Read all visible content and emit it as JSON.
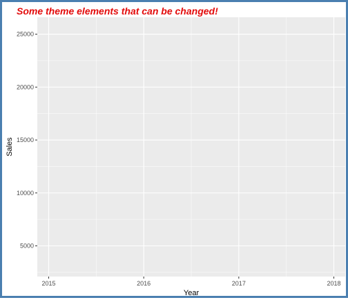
{
  "chart_data": {
    "type": "scatter",
    "title": "Some theme elements that can be changed!",
    "xlabel": "Year",
    "ylabel": "Sales",
    "x_ticks": [
      2015,
      2016,
      2017,
      2018
    ],
    "y_ticks": [
      5000,
      10000,
      15000,
      20000,
      25000
    ],
    "xlim": [
      2014.88,
      2018.12
    ],
    "ylim": [
      2100,
      26600
    ],
    "series": [],
    "grid": true,
    "legend": "none"
  },
  "colors": {
    "panel_background": "#ebebeb",
    "grid_major": "#ffffff",
    "title": "#e30b0b",
    "frame_border": "#4a7fb0"
  }
}
